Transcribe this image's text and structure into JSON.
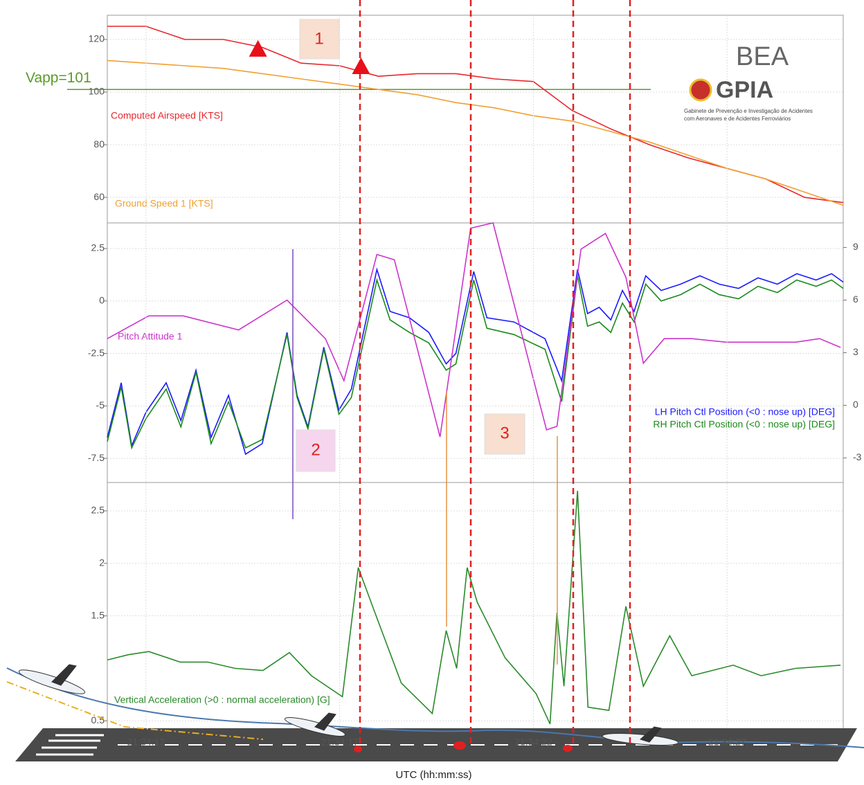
{
  "chart_data": [
    {
      "type": "line",
      "xlim": [
        11,
        30
      ],
      "ylim": [
        50.3,
        129.2
      ],
      "yticks": [
        60,
        80,
        100,
        120
      ],
      "grid": true,
      "tick_color": "#333",
      "reference_line": {
        "value": 101,
        "label": "Vapp=101",
        "color": "#5a9a2a"
      },
      "markers": [
        {
          "x": 14.89,
          "y": 116.6
        },
        {
          "x": 17.55,
          "y": 110
        }
      ],
      "series": [
        {
          "name": "Computed Airspeed [KTS]",
          "color": "#e8262b",
          "x": [
            11,
            12,
            13,
            14,
            15,
            16,
            17,
            18,
            19,
            20,
            21,
            22,
            23,
            24,
            25,
            26,
            27,
            28,
            29,
            30
          ],
          "values": [
            125,
            125,
            120,
            120,
            117,
            111,
            110,
            106,
            107,
            107,
            105,
            104,
            93,
            86,
            80,
            75,
            71,
            67,
            60,
            58
          ]
        },
        {
          "name": "Ground Speed 1 [KTS]",
          "color": "#f0a030",
          "x": [
            11,
            12,
            13,
            14,
            15,
            16,
            17,
            18,
            19,
            20,
            21,
            22,
            23,
            24,
            25,
            26,
            27,
            28,
            29,
            30
          ],
          "values": [
            112,
            111,
            110,
            109,
            107,
            105,
            103,
            101,
            99,
            96,
            94,
            91,
            89,
            85,
            81,
            76,
            71,
            67,
            62,
            57
          ]
        }
      ]
    },
    {
      "type": "line",
      "xlim": [
        11,
        30
      ],
      "ylim": [
        -8.65,
        3.72
      ],
      "yticks": [
        -7.5,
        -5,
        -2.5,
        0,
        2.5
      ],
      "y2lim": [
        -4.4,
        10.4
      ],
      "y2ticks": [
        -3,
        0,
        3,
        6,
        9
      ],
      "grid": true,
      "tick_color": "#3a8a3a",
      "series": [
        {
          "name": "LH Pitch Ctl Position (<0 : nose up) [DEG]",
          "color": "#1a1aff",
          "x": [
            11.0,
            11.36,
            11.63,
            12.0,
            12.52,
            12.9,
            13.29,
            13.68,
            14.13,
            14.57,
            15.0,
            15.64,
            15.9,
            16.18,
            16.59,
            16.98,
            17.3,
            17.96,
            18.3,
            18.8,
            19.3,
            19.75,
            20.0,
            20.46,
            20.8,
            21.5,
            22.3,
            22.73,
            23.14,
            23.4,
            23.7,
            24.0,
            24.3,
            24.6,
            24.9,
            25.3,
            25.8,
            26.3,
            26.8,
            27.3,
            27.8,
            28.3,
            28.8,
            29.3,
            29.7,
            30.0
          ],
          "values": [
            -6.5,
            -3.9,
            -6.9,
            -5.3,
            -3.9,
            -5.7,
            -3.3,
            -6.5,
            -4.5,
            -7.3,
            -6.8,
            -1.5,
            -4.5,
            -6.0,
            -2.2,
            -5.2,
            -4.2,
            1.5,
            -0.5,
            -0.8,
            -1.5,
            -3.0,
            -2.5,
            1.4,
            -0.8,
            -1.0,
            -1.8,
            -3.8,
            1.5,
            -0.6,
            -0.3,
            -0.9,
            0.5,
            -0.5,
            1.2,
            0.5,
            0.8,
            1.2,
            0.8,
            0.6,
            1.1,
            0.8,
            1.3,
            1.0,
            1.3,
            0.9
          ]
        },
        {
          "name": "RH Pitch Ctl Position (<0 : nose up) [DEG]",
          "color": "#1a8a1a",
          "x": [
            11.0,
            11.36,
            11.63,
            12.0,
            12.52,
            12.9,
            13.29,
            13.68,
            14.13,
            14.57,
            15.0,
            15.64,
            15.9,
            16.18,
            16.59,
            16.98,
            17.3,
            17.96,
            18.3,
            18.8,
            19.3,
            19.75,
            20.0,
            20.46,
            20.8,
            21.5,
            22.3,
            22.73,
            23.14,
            23.4,
            23.7,
            24.0,
            24.3,
            24.6,
            24.9,
            25.3,
            25.8,
            26.3,
            26.8,
            27.3,
            27.8,
            28.3,
            28.8,
            29.3,
            29.7,
            30.0
          ],
          "values": [
            -6.7,
            -4.1,
            -7.0,
            -5.6,
            -4.2,
            -6.0,
            -3.4,
            -6.8,
            -4.8,
            -7.0,
            -6.6,
            -1.6,
            -4.6,
            -6.1,
            -2.3,
            -5.4,
            -4.6,
            1.0,
            -0.9,
            -1.5,
            -2.0,
            -3.3,
            -3.0,
            1.0,
            -1.3,
            -1.6,
            -2.3,
            -4.8,
            1.2,
            -1.2,
            -1.0,
            -1.5,
            -0.1,
            -1.0,
            0.8,
            0.0,
            0.3,
            0.8,
            0.3,
            0.1,
            0.7,
            0.4,
            1.0,
            0.7,
            1.0,
            0.6
          ]
        },
        {
          "name": "Pitch Attitude 1",
          "color": "#cc33cc",
          "axis": "y2",
          "x": [
            11.0,
            12.07,
            12.96,
            14.39,
            15.64,
            16.63,
            17.11,
            17.96,
            18.41,
            19.59,
            20.38,
            20.96,
            22.34,
            22.61,
            23.23,
            23.86,
            24.39,
            24.84,
            25.38,
            26.09,
            26.98,
            28.77,
            29.39,
            29.93
          ],
          "values": [
            3.8,
            5.1,
            5.1,
            4.3,
            6.0,
            3.8,
            1.4,
            8.6,
            8.3,
            -1.8,
            10.1,
            10.4,
            -1.4,
            -1.2,
            8.9,
            9.8,
            7.3,
            2.4,
            3.8,
            3.8,
            3.6,
            3.6,
            3.8,
            3.3
          ]
        }
      ]
    },
    {
      "type": "line",
      "xlim": [
        11,
        30
      ],
      "ylim": [
        0.41,
        2.77
      ],
      "yticks": [
        0.5,
        1.5,
        2,
        2.5
      ],
      "grid": true,
      "tick_color": "#3a8a3a",
      "xticks": [
        {
          "value": 12,
          "label": "21:34:12"
        },
        {
          "value": 17,
          "label": "21:34:17"
        },
        {
          "value": 22,
          "label": "21:34:22"
        },
        {
          "value": 27,
          "label": "21:34:27"
        }
      ],
      "xlabel": "UTC (hh:mm:ss)",
      "series": [
        {
          "name": "Vertical Acceleration (>0 : normal acceleration) [G]",
          "color": "#2a8a2a",
          "x": [
            11.0,
            11.54,
            12.07,
            12.88,
            13.59,
            14.3,
            15.02,
            15.7,
            16.27,
            17.07,
            17.48,
            17.88,
            18.59,
            19.39,
            19.75,
            20.02,
            20.29,
            20.55,
            21.27,
            22.07,
            22.43,
            22.61,
            22.79,
            23.14,
            23.41,
            23.95,
            24.39,
            24.84,
            25.52,
            26.09,
            27.16,
            27.88,
            28.77,
            29.93
          ],
          "values": [
            1.08,
            1.13,
            1.16,
            1.06,
            1.06,
            1.0,
            0.98,
            1.15,
            0.93,
            0.73,
            1.96,
            1.56,
            0.86,
            0.57,
            1.36,
            1.0,
            1.96,
            1.63,
            1.1,
            0.76,
            0.47,
            1.53,
            0.83,
            2.69,
            0.63,
            0.6,
            1.59,
            0.83,
            1.31,
            0.93,
            1.03,
            0.93,
            1.0,
            1.03
          ]
        }
      ]
    }
  ],
  "annotations": [
    "1",
    "2",
    "3"
  ],
  "logos": {
    "bea": "BEA",
    "gpia": "GPIA",
    "gpia_caption": [
      "Gabinete de Prevenção e Investigação de Acidentes",
      "com Aeronaves e de Acidentes Ferroviários"
    ]
  }
}
